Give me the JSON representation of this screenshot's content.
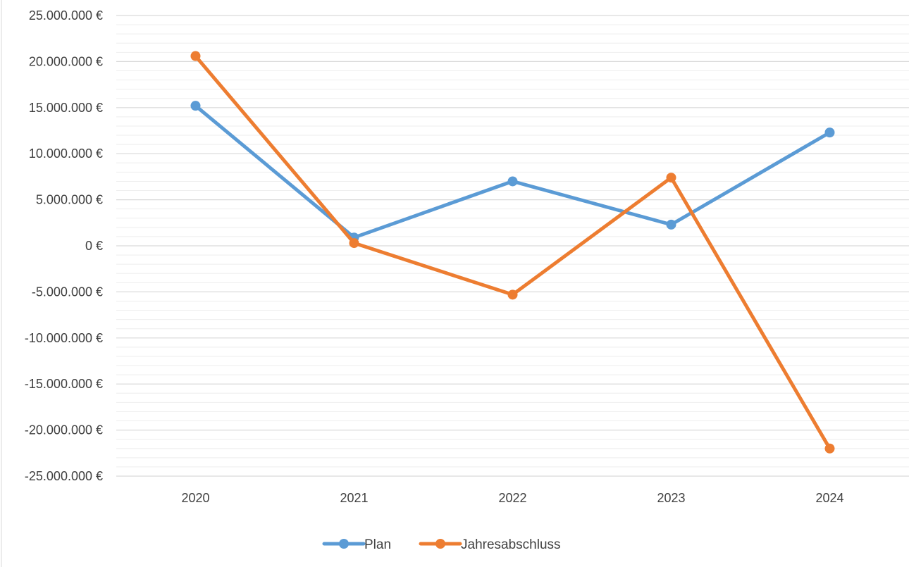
{
  "chart_data": {
    "type": "line",
    "title": "",
    "xlabel": "",
    "ylabel": "",
    "categories": [
      "2020",
      "2021",
      "2022",
      "2023",
      "2024"
    ],
    "series": [
      {
        "name": "Plan",
        "color": "#5B9BD5",
        "values": [
          15200000,
          900000,
          7000000,
          2300000,
          12300000
        ]
      },
      {
        "name": "Jahresabschluss",
        "color": "#ED7D31",
        "values": [
          20600000,
          300000,
          -5300000,
          7400000,
          -22000000
        ]
      }
    ],
    "ylim": [
      -25000000,
      25000000
    ],
    "y_major_step": 5000000,
    "y_minor_step": 1000000,
    "y_tick_labels": [
      "25.000.000 €",
      "20.000.000 €",
      "15.000.000 €",
      "10.000.000 €",
      "5.000.000 €",
      "0 €",
      "-5.000.000 €",
      "-10.000.000 €",
      "-15.000.000 €",
      "-20.000.000 €",
      "-25.000.000 €"
    ],
    "grid": true,
    "legend_position": "bottom"
  }
}
